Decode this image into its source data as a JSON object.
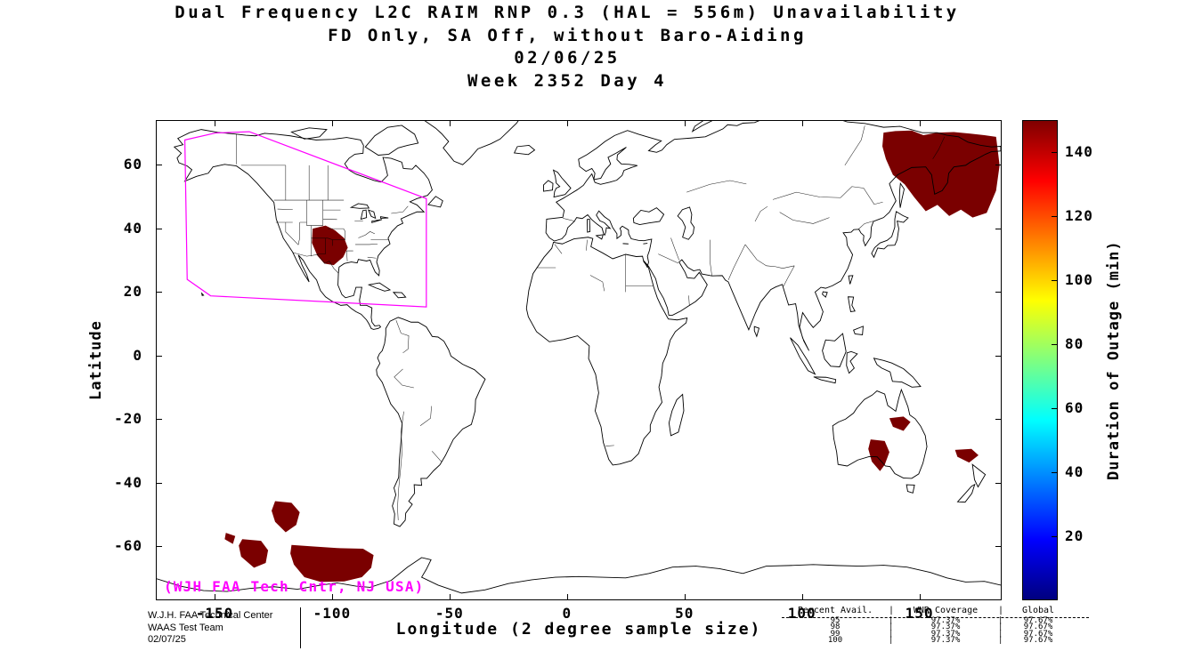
{
  "title": {
    "line1": "Dual Frequency L2C RAIM RNP 0.3 (HAL = 556m) Unavailability",
    "line2": "FD Only, SA Off, without Baro-Aiding",
    "line3": "02/06/25",
    "line4": "Week 2352 Day 4"
  },
  "annotations": {
    "map_credit": "(WJH FAA Tech Cntr, NJ USA)",
    "credit_color": "#ff00ff"
  },
  "footer": {
    "org_lines": [
      "W.J.H. FAA Technical Center",
      "WAAS Test Team",
      "02/07/25"
    ],
    "stats_table": {
      "columns": [
        "Percent Avail.",
        "WNR Coverage",
        "Global"
      ],
      "separator": "|",
      "rows": [
        [
          "95",
          "97.37%",
          "97.67%"
        ],
        [
          "98",
          "97.37%",
          "97.67%"
        ],
        [
          "99",
          "97.37%",
          "97.67%"
        ],
        [
          "100",
          "97.37%",
          "97.67%"
        ]
      ]
    }
  },
  "chart_data": {
    "type": "heatmap",
    "title": "Dual Frequency L2C RAIM RNP 0.3 (HAL = 556m) Unavailability",
    "subtitle": "FD Only, SA Off, without Baro-Aiding",
    "date": "02/06/25",
    "gps_week": "Week 2352 Day 4",
    "xlabel": "Longitude (2 degree sample size)",
    "ylabel": "Latitude",
    "xlim": [
      -175,
      185
    ],
    "ylim": [
      -77,
      74
    ],
    "xticks": [
      -150,
      -100,
      -50,
      0,
      50,
      100,
      150
    ],
    "yticks": [
      60,
      40,
      20,
      0,
      -20,
      -40,
      -60
    ],
    "grid": false,
    "colorbar": {
      "label": "Duration of Outage (min)",
      "ticks": [
        20,
        40,
        60,
        80,
        100,
        120,
        140
      ],
      "min": 0,
      "max": 150,
      "colormap": "jet"
    },
    "outage_color": "#7a0000",
    "outage_regions": [
      {
        "name": "us-southwest",
        "value": 150,
        "points": [
          [
            -108.5,
            40
          ],
          [
            -103,
            41
          ],
          [
            -99,
            39.5
          ],
          [
            -95,
            37
          ],
          [
            -93.5,
            34
          ],
          [
            -95.5,
            31
          ],
          [
            -99.5,
            28.5
          ],
          [
            -103.5,
            29
          ],
          [
            -106.5,
            31.5
          ],
          [
            -108.8,
            35.5
          ]
        ]
      },
      {
        "name": "northeast-asia",
        "value": 150,
        "points": [
          [
            135,
            70.3
          ],
          [
            140,
            70.8
          ],
          [
            147,
            71
          ],
          [
            152,
            69.5
          ],
          [
            158,
            70.3
          ],
          [
            165,
            70.5
          ],
          [
            172,
            70
          ],
          [
            178,
            69.5
          ],
          [
            183,
            69
          ],
          [
            184.5,
            60
          ],
          [
            183,
            52
          ],
          [
            179,
            45
          ],
          [
            173,
            43.5
          ],
          [
            168,
            46
          ],
          [
            163,
            44
          ],
          [
            158,
            47.5
          ],
          [
            153,
            45.5
          ],
          [
            148,
            50
          ],
          [
            144,
            54
          ],
          [
            139,
            57
          ],
          [
            136,
            62
          ],
          [
            134.5,
            66
          ]
        ]
      },
      {
        "name": "australia-north",
        "value": 150,
        "points": [
          [
            137.5,
            -19.8
          ],
          [
            143.5,
            -19.3
          ],
          [
            146.5,
            -21
          ],
          [
            143.5,
            -23.8
          ],
          [
            139,
            -22.5
          ]
        ]
      },
      {
        "name": "australia-south",
        "value": 150,
        "points": [
          [
            129.5,
            -26.5
          ],
          [
            135.5,
            -27
          ],
          [
            137.5,
            -30.5
          ],
          [
            135.5,
            -34.5
          ],
          [
            133.5,
            -36.5
          ],
          [
            130,
            -33.5
          ],
          [
            128.5,
            -29.5
          ]
        ]
      },
      {
        "name": "tasman-sea",
        "value": 150,
        "points": [
          [
            165.5,
            -29.8
          ],
          [
            172.5,
            -29.5
          ],
          [
            175.5,
            -31.5
          ],
          [
            171.5,
            -33.8
          ],
          [
            166.5,
            -32
          ]
        ]
      },
      {
        "name": "south-pacific-1",
        "value": 150,
        "points": [
          [
            -124.5,
            -46
          ],
          [
            -117.5,
            -46.5
          ],
          [
            -114,
            -49.5
          ],
          [
            -115.5,
            -53.5
          ],
          [
            -120,
            -55.8
          ],
          [
            -124.5,
            -52.5
          ],
          [
            -126,
            -49
          ]
        ]
      },
      {
        "name": "south-pacific-2",
        "value": 150,
        "points": [
          [
            -145.5,
            -56
          ],
          [
            -141.5,
            -57
          ],
          [
            -142.5,
            -59.5
          ],
          [
            -146,
            -58
          ]
        ]
      },
      {
        "name": "south-pacific-3",
        "value": 150,
        "points": [
          [
            -138.5,
            -58
          ],
          [
            -130.5,
            -58.5
          ],
          [
            -127.5,
            -61.5
          ],
          [
            -128.5,
            -65.5
          ],
          [
            -133.5,
            -67
          ],
          [
            -139,
            -63.5
          ],
          [
            -140,
            -60
          ]
        ]
      },
      {
        "name": "south-pacific-4",
        "value": 150,
        "points": [
          [
            -117.5,
            -59.8
          ],
          [
            -108,
            -60.3
          ],
          [
            -98,
            -60.8
          ],
          [
            -87,
            -61
          ],
          [
            -82.5,
            -63
          ],
          [
            -83.5,
            -67
          ],
          [
            -87.5,
            -70
          ],
          [
            -95,
            -71.3
          ],
          [
            -105,
            -71.5
          ],
          [
            -112,
            -70
          ],
          [
            -116.5,
            -66
          ],
          [
            -118,
            -62.5
          ]
        ]
      }
    ],
    "waas_boundary": {
      "color": "#ff00ff",
      "points": [
        [
          -163,
          68
        ],
        [
          -150,
          70.2
        ],
        [
          -135.5,
          70.6
        ],
        [
          -60,
          49.5
        ],
        [
          -60,
          15.3
        ],
        [
          -152,
          18.8
        ],
        [
          -162,
          24
        ]
      ]
    }
  }
}
